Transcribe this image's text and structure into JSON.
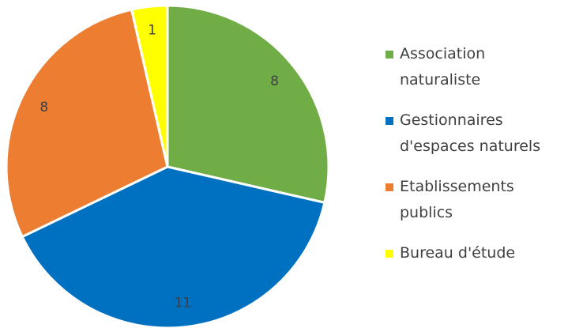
{
  "chart_data": {
    "type": "pie",
    "categories": [
      "Association naturaliste",
      "Gestionnaires d'espaces naturels",
      "Etablissements publics",
      "Bureau d'étude"
    ],
    "values": [
      8,
      11,
      8,
      1
    ],
    "colors": [
      "#70ad47",
      "#0070c0",
      "#ed7d31",
      "#ffff00"
    ],
    "legend": "right"
  }
}
